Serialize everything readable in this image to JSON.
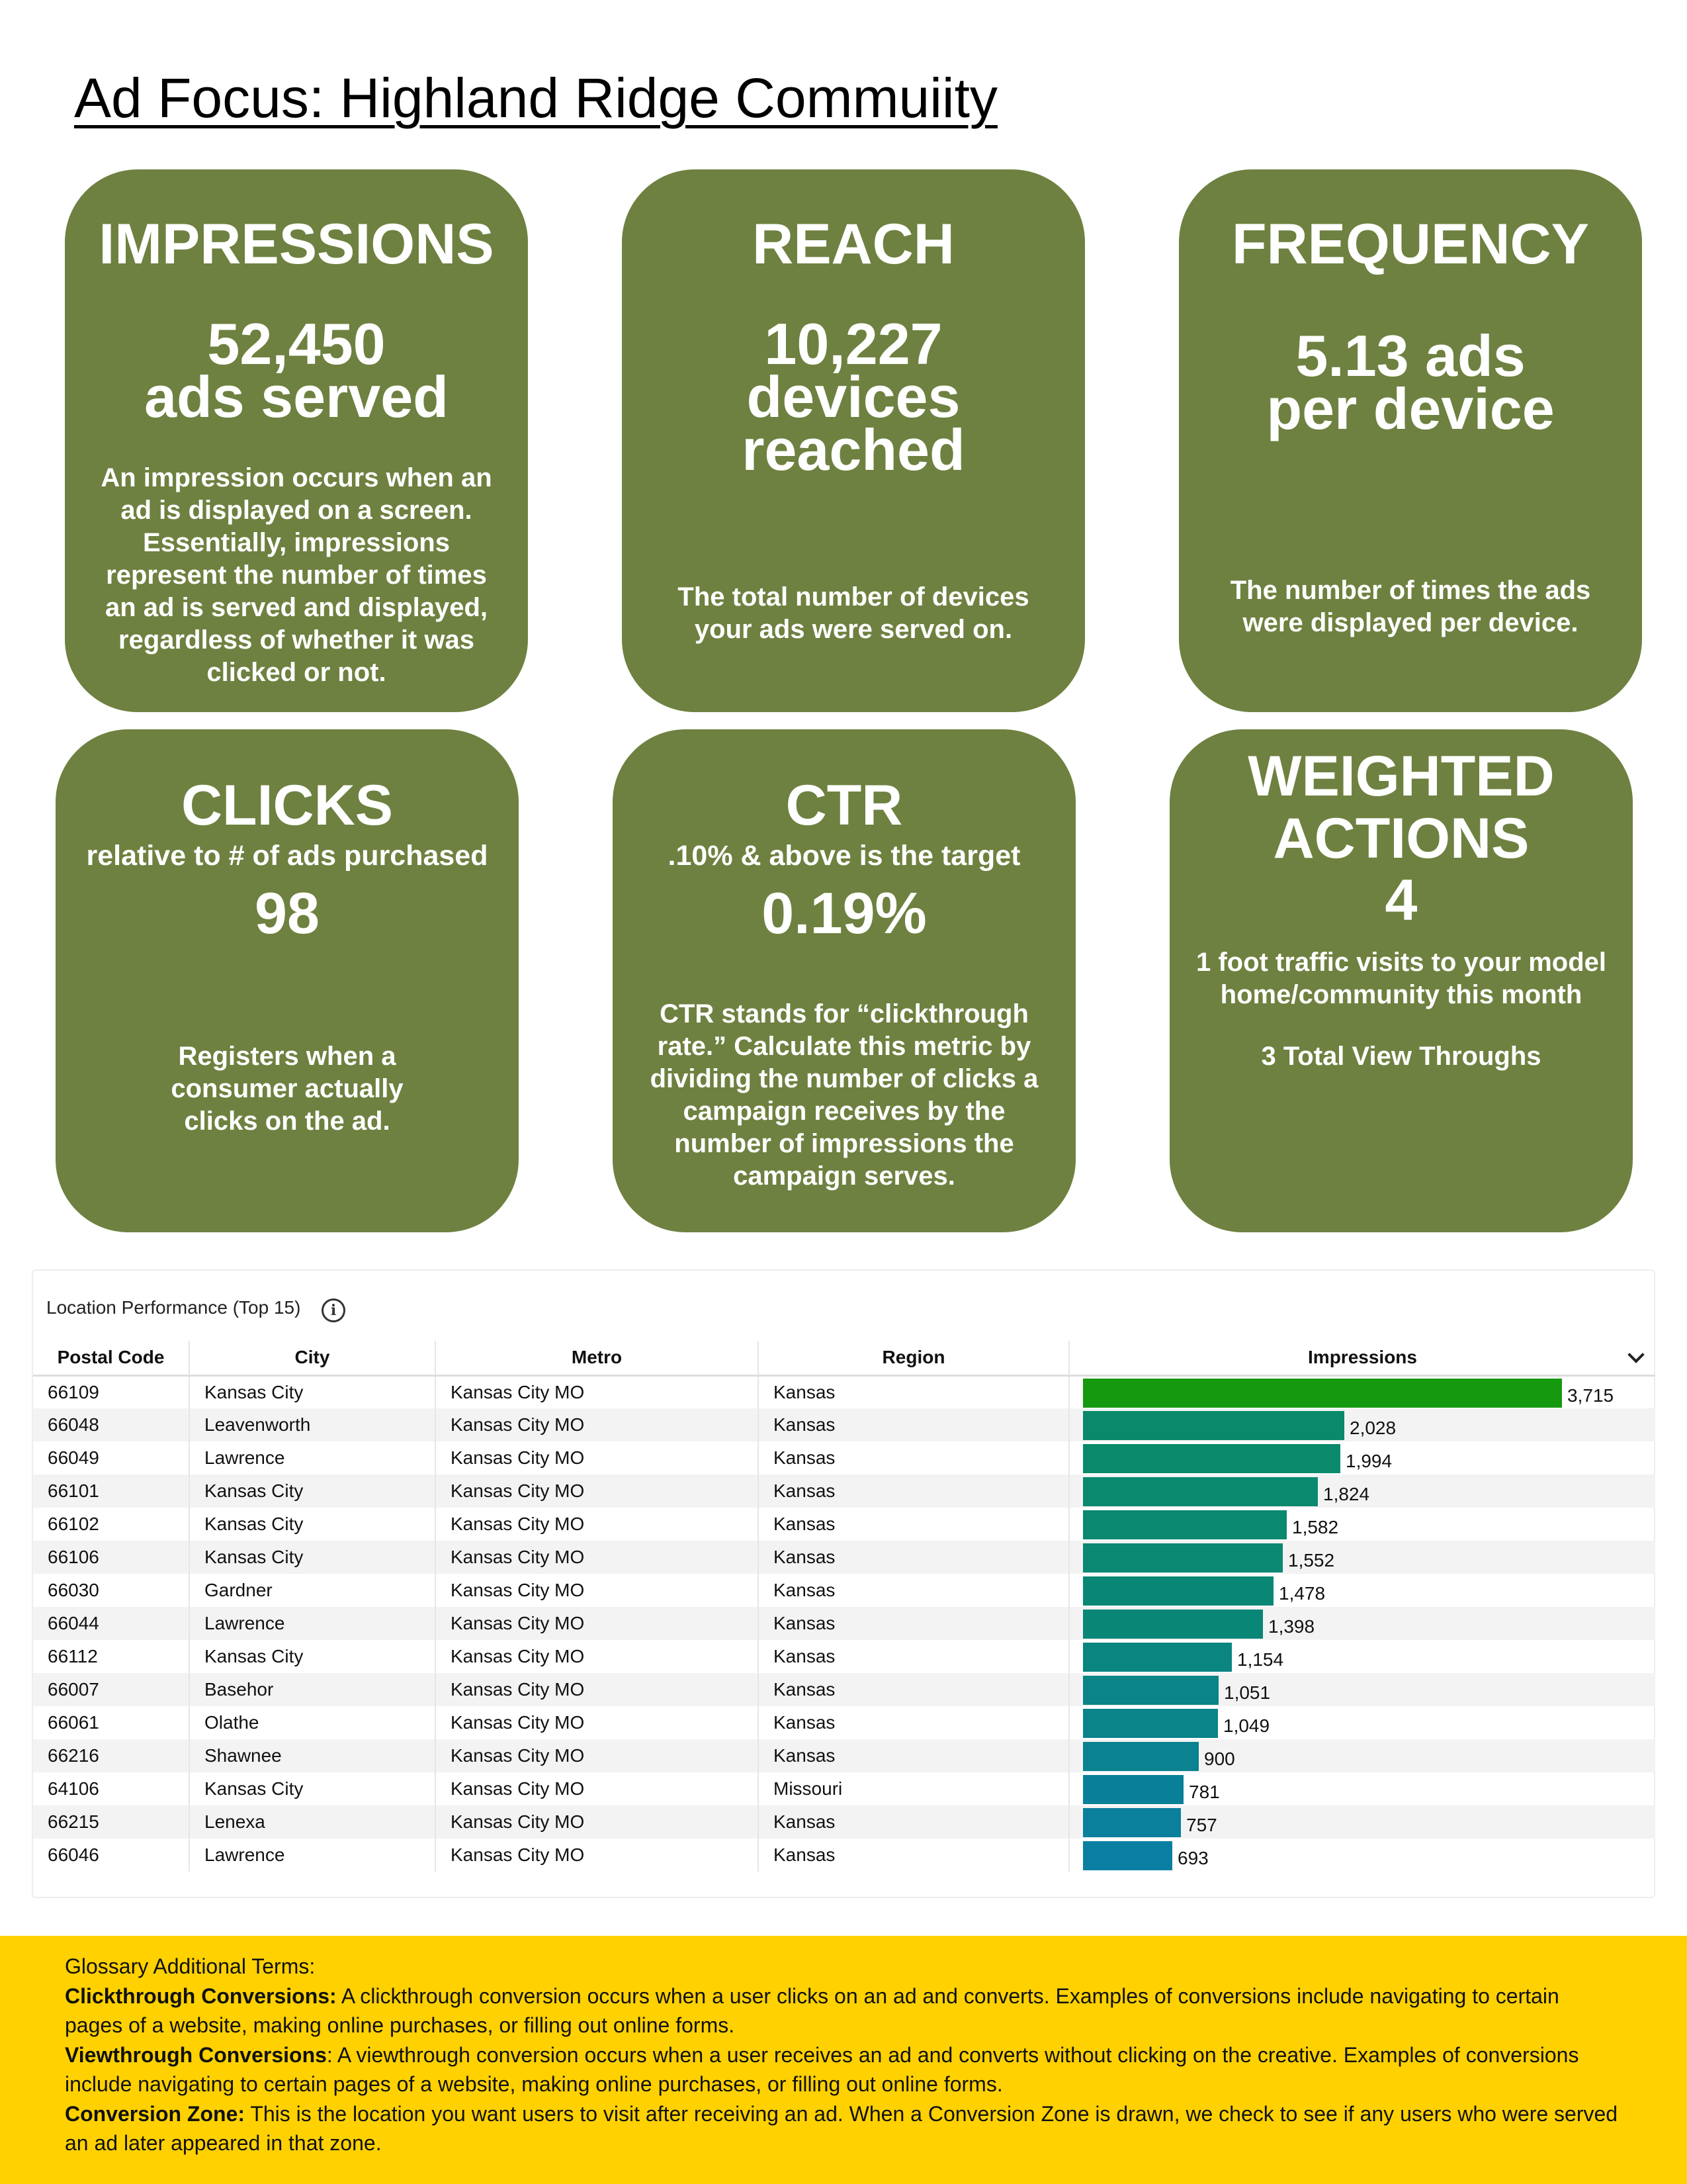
{
  "title": "Ad Focus: Highland Ridge Commuiity",
  "cards": {
    "impressions": {
      "title": "IMPRESSIONS",
      "value": "52,450",
      "value_unit": "ads served",
      "description": "An impression occurs when an ad is displayed on a screen. Essentially, impressions represent the number of times an ad is served and displayed, regardless of whether it was clicked or not."
    },
    "reach": {
      "title": "REACH",
      "value": "10,227",
      "value_line2": "devices",
      "value_line3": "reached",
      "description": "The total number of devices your ads were served on."
    },
    "frequency": {
      "title": "FREQUENCY",
      "value": "5.13 ads",
      "value_line2": "per device",
      "description": "The number of times the ads were displayed per device."
    },
    "clicks": {
      "title": "CLICKS",
      "subtitle": "relative to # of ads purchased",
      "value": "98",
      "description": "Registers when a consumer actually clicks on the ad."
    },
    "ctr": {
      "title": "CTR",
      "subtitle": ".10% & above is the target",
      "value": "0.19%",
      "description": "CTR stands for “clickthrough rate.” Calculate this metric by dividing the number of clicks a campaign receives by the number of impressions the campaign serves."
    },
    "weighted": {
      "title_line1": "WEIGHTED",
      "title_line2": "ACTIONS",
      "value": "4",
      "foot_traffic": "1 foot traffic visits to your model home/community this month",
      "view_throughs": "3 Total View Throughs"
    }
  },
  "location_table": {
    "title": "Location Performance (Top 15)",
    "info_icon": "info-icon",
    "columns": [
      "Postal Code",
      "City",
      "Metro",
      "Region",
      "Impressions"
    ],
    "max_impressions": 3715,
    "rows": [
      {
        "postal": "66109",
        "city": "Kansas City",
        "metro": "Kansas City MO",
        "region": "Kansas",
        "impressions": 3715,
        "label": "3,715",
        "color": "#15990f"
      },
      {
        "postal": "66048",
        "city": "Leavenworth",
        "metro": "Kansas City MO",
        "region": "Kansas",
        "impressions": 2028,
        "label": "2,028",
        "color": "#0a8a6a"
      },
      {
        "postal": "66049",
        "city": "Lawrence",
        "metro": "Kansas City MO",
        "region": "Kansas",
        "impressions": 1994,
        "label": "1,994",
        "color": "#0a8a6a"
      },
      {
        "postal": "66101",
        "city": "Kansas City",
        "metro": "Kansas City MO",
        "region": "Kansas",
        "impressions": 1824,
        "label": "1,824",
        "color": "#0a896e"
      },
      {
        "postal": "66102",
        "city": "Kansas City",
        "metro": "Kansas City MO",
        "region": "Kansas",
        "impressions": 1582,
        "label": "1,582",
        "color": "#0a8870"
      },
      {
        "postal": "66106",
        "city": "Kansas City",
        "metro": "Kansas City MO",
        "region": "Kansas",
        "impressions": 1552,
        "label": "1,552",
        "color": "#0a8872"
      },
      {
        "postal": "66030",
        "city": "Gardner",
        "metro": "Kansas City MO",
        "region": "Kansas",
        "impressions": 1478,
        "label": "1,478",
        "color": "#0a8774"
      },
      {
        "postal": "66044",
        "city": "Lawrence",
        "metro": "Kansas City MO",
        "region": "Kansas",
        "impressions": 1398,
        "label": "1,398",
        "color": "#0a8676"
      },
      {
        "postal": "66112",
        "city": "Kansas City",
        "metro": "Kansas City MO",
        "region": "Kansas",
        "impressions": 1154,
        "label": "1,154",
        "color": "#0a8580"
      },
      {
        "postal": "66007",
        "city": "Basehor",
        "metro": "Kansas City MO",
        "region": "Kansas",
        "impressions": 1051,
        "label": "1,051",
        "color": "#0a8486"
      },
      {
        "postal": "66061",
        "city": "Olathe",
        "metro": "Kansas City MO",
        "region": "Kansas",
        "impressions": 1049,
        "label": "1,049",
        "color": "#0a8488"
      },
      {
        "postal": "66216",
        "city": "Shawnee",
        "metro": "Kansas City MO",
        "region": "Kansas",
        "impressions": 900,
        "label": "900",
        "color": "#0a8290"
      },
      {
        "postal": "64106",
        "city": "Kansas City",
        "metro": "Kansas City MO",
        "region": "Missouri",
        "impressions": 781,
        "label": "781",
        "color": "#0a8098"
      },
      {
        "postal": "66215",
        "city": "Lenexa",
        "metro": "Kansas City MO",
        "region": "Kansas",
        "impressions": 757,
        "label": "757",
        "color": "#0a809c"
      },
      {
        "postal": "66046",
        "city": "Lawrence",
        "metro": "Kansas City MO",
        "region": "Kansas",
        "impressions": 693,
        "label": "693",
        "color": "#0a7fa2"
      }
    ]
  },
  "glossary": {
    "heading": "Glossary Additional Terms:",
    "terms": [
      {
        "term": "Clickthrough Conversions:",
        "definition": " A clickthrough conversion occurs when a user clicks on an ad and converts. Examples of conversions include navigating to certain pages of a website, making online purchases, or filling out online forms."
      },
      {
        "term": "Viewthrough Conversions",
        "definition": ": A viewthrough conversion occurs when a user receives an ad and converts without clicking on the creative. Examples of conversions include navigating to certain pages of a website, making online purchases, or filling out online forms."
      },
      {
        "term": "Conversion Zone:",
        "definition": " This is the location you want users to visit after receiving an ad. When a Conversion Zone is drawn, we check to see if any users who were served an ad later appeared in that zone."
      }
    ]
  }
}
